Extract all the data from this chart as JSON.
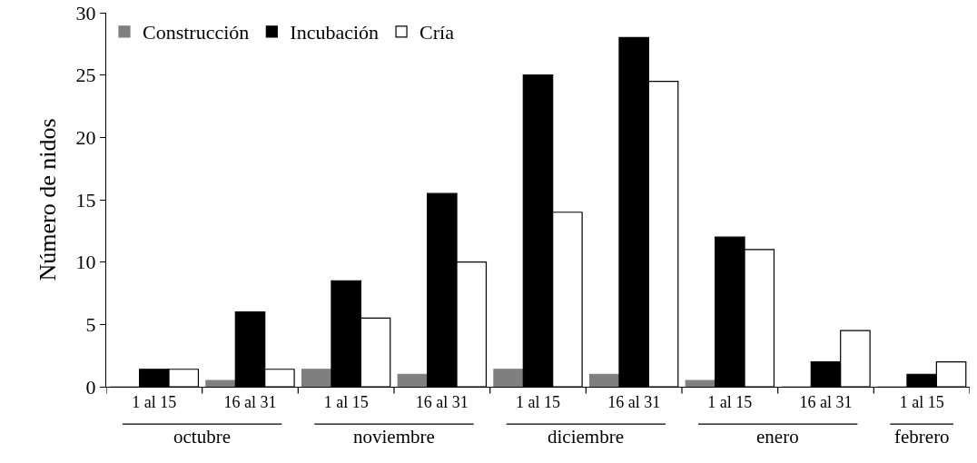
{
  "chart_data": {
    "type": "bar",
    "ylabel": "Número de nidos",
    "categories": [
      "1 al 15",
      "16 al 31",
      "1 al 15",
      "16 al 31",
      "1 al 15",
      "16 al 31",
      "1 al 15",
      "16 al 31",
      "1 al 15"
    ],
    "series": [
      {
        "name": "Construcción",
        "color": "#7f7f7f",
        "values": [
          0,
          0.5,
          1.4,
          1,
          1.4,
          1,
          0.5,
          0,
          0
        ]
      },
      {
        "name": "Incubación",
        "color": "#000000",
        "values": [
          1.4,
          6,
          8.5,
          15.5,
          25,
          28,
          12,
          2,
          1
        ]
      },
      {
        "name": "Cría",
        "color": "#ffffff",
        "values": [
          1.4,
          1.4,
          5.5,
          10,
          14,
          24.5,
          11,
          4.5,
          2
        ]
      }
    ],
    "annotations": [
      "octubre",
      "noviembre",
      "diciembre",
      "enero",
      "febrero"
    ],
    "ylim": [
      0,
      30
    ],
    "yticks": [
      0,
      5,
      10,
      15,
      20,
      25,
      30
    ],
    "grid": false,
    "legend": "top left"
  }
}
